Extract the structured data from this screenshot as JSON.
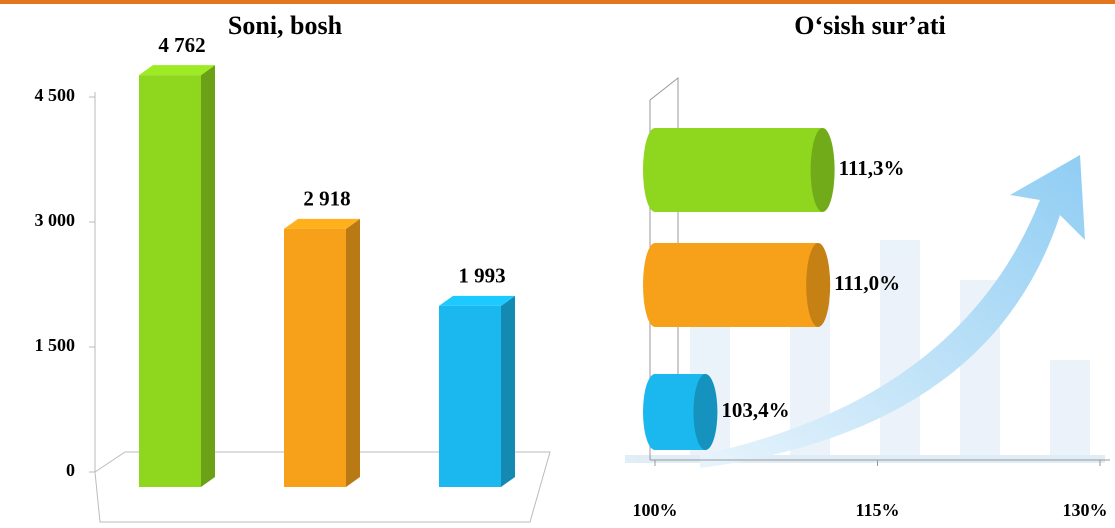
{
  "chart_data": [
    {
      "type": "bar3d",
      "title": "Soni, bosh",
      "values": [
        4762,
        2918,
        1993
      ],
      "value_labels": [
        "4 762",
        "2 918",
        "1 993"
      ],
      "colors": [
        "#8fd61f",
        "#f7a11a",
        "#1ab8ee"
      ],
      "ylim": [
        0,
        4500
      ],
      "yticks": [
        0,
        {
          "value": 1500,
          "label": "1 500"
        },
        {
          "value": 3000,
          "label": "3 000"
        },
        {
          "value": 4500,
          "label": "4 500"
        }
      ]
    },
    {
      "type": "cylinder",
      "title": "O‘sish sur’ati",
      "values": [
        111.3,
        111.0,
        103.4
      ],
      "value_labels": [
        "111,3%",
        "111,0%",
        "103,4%"
      ],
      "colors": [
        "#8fd61f",
        "#f7a11a",
        "#1ab8ee"
      ],
      "xlim": [
        100,
        130
      ],
      "xticks": [
        {
          "value": 100,
          "label": "100%"
        },
        {
          "value": 115,
          "label": "115%"
        },
        {
          "value": 130,
          "label": "130%"
        }
      ]
    }
  ]
}
